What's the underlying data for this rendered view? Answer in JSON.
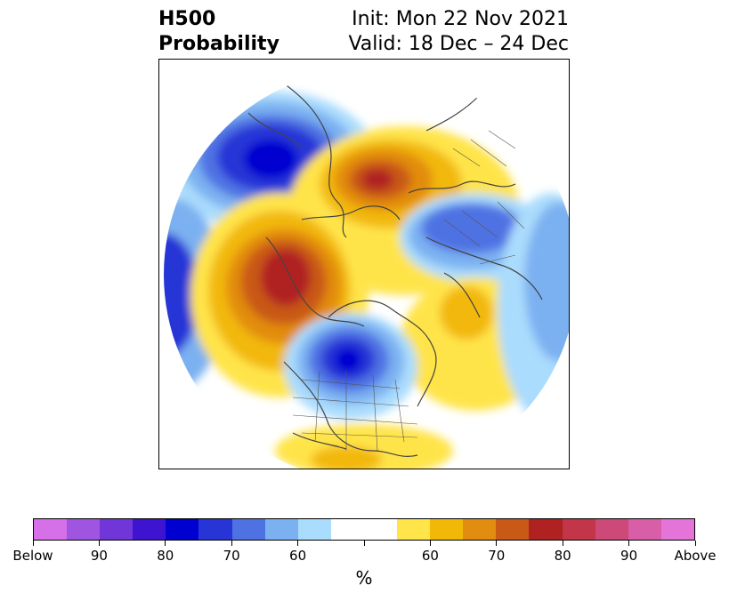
{
  "header": {
    "title_line1": "H500",
    "title_line2": "Probability",
    "init_text": "Init: Mon 22 Nov 2021",
    "valid_text": "Valid: 18 Dec – 24 Dec"
  },
  "colorbar": {
    "colors": [
      "#d670e8",
      "#9f55e0",
      "#7036d8",
      "#3f14d1",
      "#0000d0",
      "#2835d6",
      "#4f72e3",
      "#7bb1f1",
      "#aadcfd",
      "#ffffff",
      "#ffffff",
      "#ffe44a",
      "#f2b807",
      "#e28c10",
      "#c95916",
      "#b02222",
      "#c33548",
      "#cd4978",
      "#d85ea8",
      "#e474d8"
    ],
    "tick_labels": [
      "Below",
      "90",
      "80",
      "70",
      "60",
      "",
      "60",
      "70",
      "80",
      "90",
      "Above"
    ],
    "unit_label": "%"
  }
}
